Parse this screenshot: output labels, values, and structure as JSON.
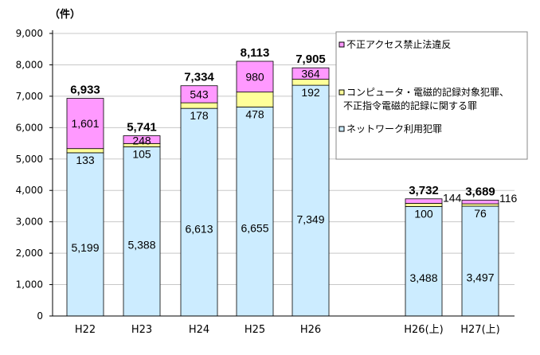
{
  "chart_data": {
    "type": "bar",
    "stacked": true,
    "unit_label": "（件）",
    "categories": [
      "H22",
      "H23",
      "H24",
      "H25",
      "H26",
      "H26(上)",
      "H27(上)"
    ],
    "series": [
      {
        "name": "ネットワーク利用犯罪",
        "color": "#CCECFF",
        "values": [
          5199,
          5388,
          6613,
          6655,
          7349,
          3488,
          3497
        ]
      },
      {
        "name": "コンピュータ・電磁的記録対象犯罪、不正指令電磁的記録に関する罪",
        "color": "#FFFF99",
        "values": [
          133,
          105,
          178,
          478,
          192,
          100,
          76
        ]
      },
      {
        "name": "不正アクセス禁止法違反",
        "color": "#FF99FF",
        "values": [
          1601,
          248,
          543,
          980,
          364,
          144,
          116
        ]
      }
    ],
    "totals": [
      6933,
      5741,
      7334,
      8113,
      7905,
      3732,
      3689
    ],
    "yticks": [
      0,
      1000,
      2000,
      3000,
      4000,
      5000,
      6000,
      7000,
      8000,
      9000
    ],
    "ylim": [
      0,
      9000
    ],
    "grid": true,
    "legend_position": "top-right"
  },
  "legend": {
    "items": [
      {
        "text": "不正アクセス禁止法違反"
      },
      {
        "text": "コンピュータ・電磁的記録対象犯罪、"
      },
      {
        "text": "不正指令電磁的記録に関する罪"
      },
      {
        "text": "ネットワーク利用犯罪"
      }
    ]
  }
}
